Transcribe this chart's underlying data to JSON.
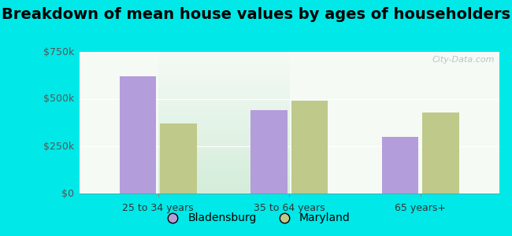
{
  "title": "Breakdown of mean house values by ages of householders",
  "categories": [
    "25 to 34 years",
    "35 to 64 years",
    "65 years+"
  ],
  "bladensburg": [
    620000,
    440000,
    300000
  ],
  "maryland": [
    370000,
    490000,
    430000
  ],
  "bar_color_bladensburg": "#b39ddb",
  "bar_color_maryland": "#bec98a",
  "background_outer": "#00e8e8",
  "background_inner_bottom": "#d4edda",
  "background_inner_top": "#f5faf5",
  "ylim": [
    0,
    750000
  ],
  "yticks": [
    0,
    250000,
    500000,
    750000
  ],
  "ytick_labels": [
    "$0",
    "$250k",
    "$500k",
    "$750k"
  ],
  "legend_labels": [
    "Bladensburg",
    "Maryland"
  ],
  "title_fontsize": 14,
  "tick_fontsize": 9,
  "legend_fontsize": 10,
  "bar_width": 0.28,
  "bar_gap": 0.03
}
